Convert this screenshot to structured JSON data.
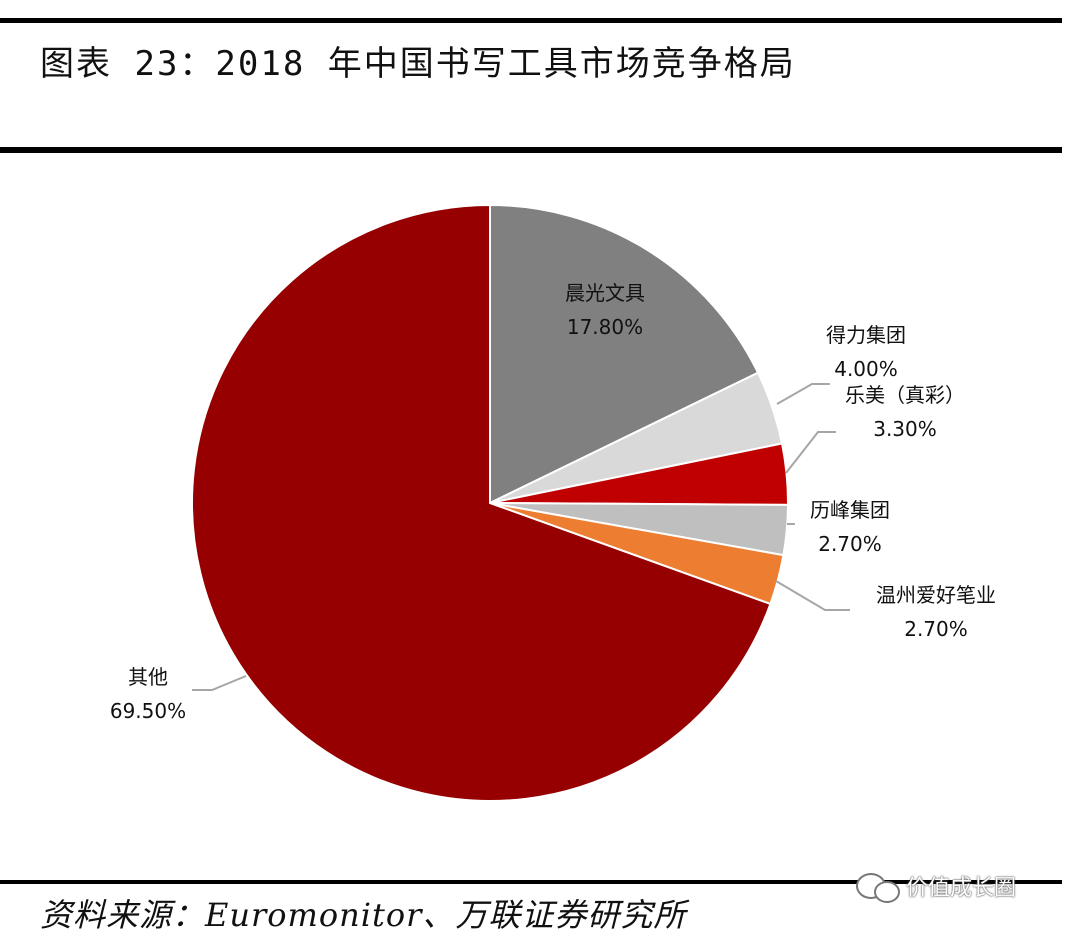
{
  "title": "图表 23：2018 年中国书写工具市场竞争格局",
  "source": "资料来源：Euromonitor、万联证券研究所",
  "watermark": "价值成长圈",
  "chart_data": {
    "type": "pie",
    "start_angle_deg": 0,
    "direction": "clockwise",
    "slices": [
      {
        "name": "晨光文具",
        "value": 17.8,
        "label": "17.80%",
        "color": "#808080"
      },
      {
        "name": "得力集团",
        "value": 4.0,
        "label": "4.00%",
        "color": "#d9d9d9"
      },
      {
        "name": "乐美（真彩）",
        "value": 3.3,
        "label": "3.30%",
        "color": "#c00000"
      },
      {
        "name": "历峰集团",
        "value": 2.7,
        "label": "2.70%",
        "color": "#bfbfbf"
      },
      {
        "name": "温州爱好笔业",
        "value": 2.7,
        "label": "2.70%",
        "color": "#ed7d31"
      },
      {
        "name": "其他",
        "value": 69.5,
        "label": "69.50%",
        "color": "#960000"
      }
    ]
  }
}
